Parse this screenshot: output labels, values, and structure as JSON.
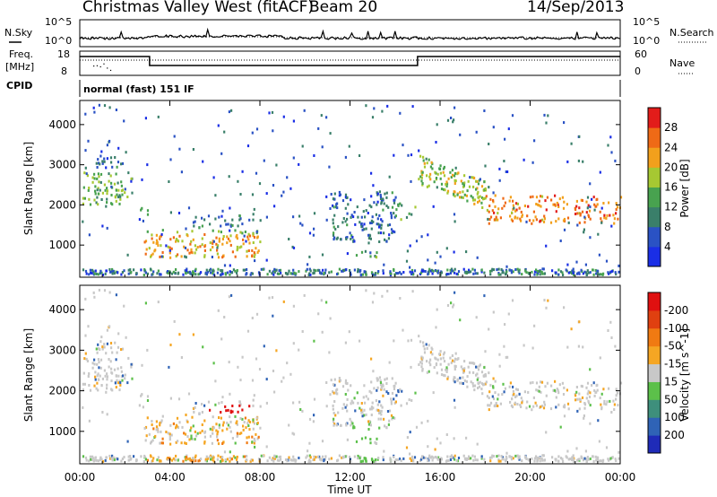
{
  "header": {
    "station": "Christmas Valley West (fitACF)",
    "beam": "Beam 20",
    "date": "14/Sep/2013"
  },
  "noise_panel": {
    "left_label": "N.Sky",
    "right_label": "N.Search",
    "left_ticks": [
      "10^5",
      "10^0"
    ],
    "right_ticks": [
      "10^5",
      "10^0"
    ]
  },
  "freq_panel": {
    "left_label_1": "Freq.",
    "left_label_2": "[MHz]",
    "right_label": "Nave",
    "left_ticks": [
      "18",
      "8"
    ],
    "right_ticks": [
      "60",
      "0"
    ]
  },
  "cpid": {
    "label": "CPID",
    "value": "normal (fast) 151 IF"
  },
  "chart_data": [
    {
      "type": "heatmap",
      "name": "Power",
      "ylabel": "Slant Range [km]",
      "yticks": [
        "1000",
        "2000",
        "3000",
        "4000"
      ],
      "ylim": [
        200,
        4600
      ],
      "colorbar_label": "Power [dB]",
      "colorbar_ticks": [
        "4",
        "8",
        "12",
        "16",
        "20",
        "24",
        "28"
      ],
      "colorbar_colors": [
        "#1a2ee6",
        "#2a52c4",
        "#3a7f6a",
        "#48a24f",
        "#a6c832",
        "#f2a01c",
        "#ef6a16",
        "#e21c1a"
      ],
      "scatter_blobs": [
        {
          "t0": 0.1,
          "t1": 2.3,
          "r0": 1900,
          "r1": 2800,
          "level": 0.45
        },
        {
          "t0": 0.5,
          "t1": 2.0,
          "r0": 2900,
          "r1": 3200,
          "level": 0.2
        },
        {
          "t0": 2.5,
          "t1": 3.0,
          "r0": 1700,
          "r1": 1900,
          "level": 0.35
        },
        {
          "t0": 2.8,
          "t1": 8.0,
          "r0": 650,
          "r1": 1350,
          "level": 0.75
        },
        {
          "t0": 5.0,
          "t1": 7.5,
          "r0": 1400,
          "r1": 1700,
          "level": 0.25
        },
        {
          "t0": 11.0,
          "t1": 14.0,
          "r0": 1000,
          "r1": 2300,
          "level": 0.2
        },
        {
          "t0": 12.2,
          "t1": 13.2,
          "r0": 650,
          "r1": 850,
          "level": 0.4
        },
        {
          "t0": 14.0,
          "t1": 14.9,
          "r0": 1600,
          "r1": 2000,
          "level": 0.35
        },
        {
          "t0": 15.0,
          "t1": 18.0,
          "r0": 1950,
          "r1": 3150,
          "level": 0.55
        },
        {
          "t0": 18.0,
          "t1": 24.0,
          "r0": 1500,
          "r1": 2200,
          "level": 0.8
        }
      ]
    },
    {
      "type": "heatmap",
      "name": "Velocity",
      "ylabel": "Slant Range [km]",
      "yticks": [
        "1000",
        "2000",
        "3000",
        "4000"
      ],
      "ylim": [
        200,
        4600
      ],
      "colorbar_label": "Velocity [m s^-1]",
      "colorbar_ticks": [
        "200",
        "100",
        "50",
        "15",
        "-15",
        "-50",
        "-100",
        "-200"
      ],
      "colorbar_colors": [
        "#1f2bb8",
        "#2f63b6",
        "#3e8f7c",
        "#5cc04a",
        "#c8c8c8",
        "#f5a623",
        "#f07a12",
        "#e04010",
        "#e01010"
      ],
      "xlabel": "Time UT",
      "xticks": [
        "00:00",
        "04:00",
        "08:00",
        "12:00",
        "16:00",
        "20:00",
        "00:00"
      ],
      "xlim": [
        0,
        24
      ]
    }
  ],
  "colors": {
    "frame": "#000000",
    "grey_velocity": "#c8c8c8"
  }
}
